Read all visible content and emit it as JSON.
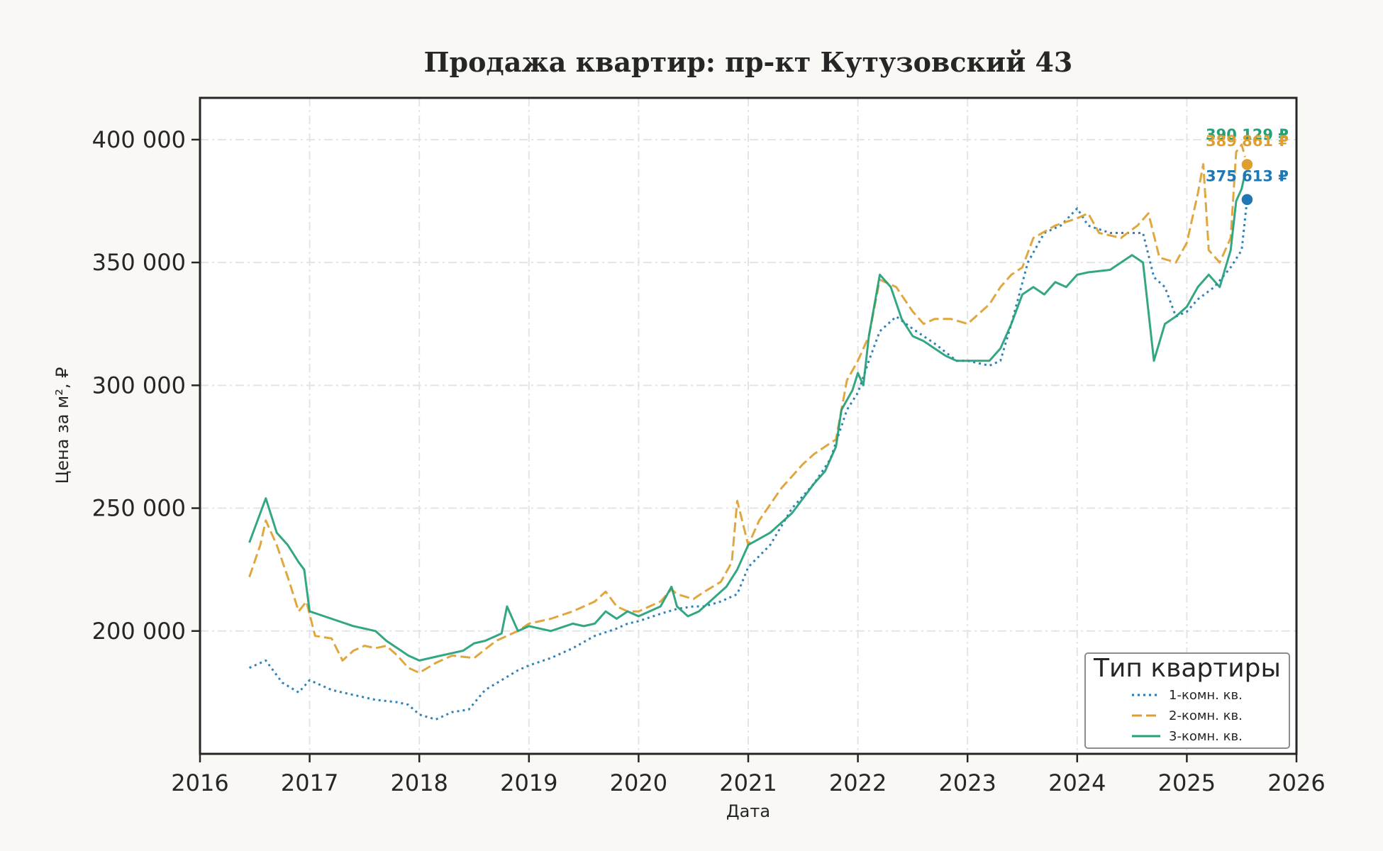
{
  "chart_data": {
    "type": "line",
    "title": "Продажа квартир: пр-кт Кутузовский 43",
    "xlabel": "Дата",
    "ylabel": "Цена за м², ₽",
    "xlim": [
      2016,
      2026
    ],
    "ylim": [
      150000,
      417000
    ],
    "xticks": [
      "2016",
      "2017",
      "2018",
      "2019",
      "2020",
      "2021",
      "2022",
      "2023",
      "2024",
      "2025",
      "2026"
    ],
    "yticks": [
      {
        "value": 200000,
        "label": "200 000"
      },
      {
        "value": 250000,
        "label": "250 000"
      },
      {
        "value": 300000,
        "label": "300 000"
      },
      {
        "value": 350000,
        "label": "350 000"
      },
      {
        "value": 400000,
        "label": "400 000"
      }
    ],
    "grid": true,
    "legend": {
      "title": "Тип квартиры",
      "placement": "lower-right"
    },
    "series": [
      {
        "name": "1-комн. кв.",
        "color": "#1f77b4",
        "style": "dotted",
        "x": [
          2016.45,
          2016.6,
          2016.75,
          2016.9,
          2017.0,
          2017.2,
          2017.4,
          2017.6,
          2017.8,
          2017.9,
          2018.0,
          2018.15,
          2018.3,
          2018.45,
          2018.6,
          2018.75,
          2018.9,
          2019.0,
          2019.2,
          2019.4,
          2019.6,
          2019.8,
          2019.9,
          2020.0,
          2020.2,
          2020.35,
          2020.5,
          2020.6,
          2020.75,
          2020.9,
          2021.0,
          2021.2,
          2021.4,
          2021.6,
          2021.75,
          2021.9,
          2022.0,
          2022.1,
          2022.2,
          2022.35,
          2022.5,
          2022.7,
          2022.9,
          2023.0,
          2023.2,
          2023.3,
          2023.4,
          2023.55,
          2023.7,
          2023.85,
          2024.0,
          2024.1,
          2024.3,
          2024.5,
          2024.6,
          2024.7,
          2024.8,
          2024.9,
          2025.0,
          2025.1,
          2025.25,
          2025.4,
          2025.5,
          2025.55
        ],
        "values": [
          185000,
          188000,
          179000,
          175000,
          180000,
          176000,
          174000,
          172000,
          171000,
          170000,
          166000,
          164000,
          167000,
          168000,
          176000,
          180000,
          184000,
          186000,
          189000,
          193000,
          198000,
          201000,
          203000,
          204000,
          207000,
          209000,
          210000,
          210000,
          212000,
          215000,
          226000,
          235000,
          250000,
          260000,
          270000,
          290000,
          297000,
          310000,
          322000,
          328000,
          323000,
          317000,
          310000,
          310000,
          308000,
          310000,
          325000,
          350000,
          362000,
          365000,
          372000,
          365000,
          362000,
          362000,
          362000,
          344000,
          340000,
          328000,
          330000,
          335000,
          340000,
          348000,
          355000,
          375613
        ]
      },
      {
        "name": "2-комн. кв.",
        "color": "#de9f2f",
        "style": "dashed",
        "x": [
          2016.45,
          2016.55,
          2016.6,
          2016.7,
          2016.8,
          2016.9,
          2016.97,
          2017.05,
          2017.2,
          2017.3,
          2017.4,
          2017.5,
          2017.6,
          2017.7,
          2017.8,
          2017.9,
          2018.0,
          2018.15,
          2018.3,
          2018.5,
          2018.7,
          2018.9,
          2019.0,
          2019.2,
          2019.4,
          2019.6,
          2019.7,
          2019.8,
          2019.9,
          2020.0,
          2020.2,
          2020.3,
          2020.35,
          2020.5,
          2020.6,
          2020.75,
          2020.85,
          2020.9,
          2021.0,
          2021.1,
          2021.3,
          2021.5,
          2021.6,
          2021.7,
          2021.8,
          2021.85,
          2021.9,
          2022.0,
          2022.1,
          2022.2,
          2022.35,
          2022.5,
          2022.6,
          2022.7,
          2022.85,
          2023.0,
          2023.2,
          2023.3,
          2023.4,
          2023.5,
          2023.6,
          2023.8,
          2024.0,
          2024.1,
          2024.2,
          2024.4,
          2024.55,
          2024.65,
          2024.75,
          2024.9,
          2025.0,
          2025.1,
          2025.15,
          2025.2,
          2025.3,
          2025.4,
          2025.45,
          2025.5,
          2025.55
        ],
        "values": [
          222000,
          235000,
          245000,
          235000,
          222000,
          208000,
          212000,
          198000,
          197000,
          188000,
          192000,
          194000,
          193000,
          194000,
          190000,
          185000,
          183000,
          187000,
          190000,
          189000,
          196000,
          200000,
          203000,
          205000,
          208000,
          212000,
          216000,
          210000,
          208000,
          208000,
          212000,
          217000,
          215000,
          213000,
          216000,
          220000,
          228000,
          253000,
          235000,
          245000,
          258000,
          268000,
          272000,
          275000,
          278000,
          290000,
          302000,
          310000,
          320000,
          343000,
          340000,
          330000,
          325000,
          327000,
          327000,
          325000,
          333000,
          340000,
          345000,
          348000,
          360000,
          365000,
          368000,
          370000,
          362000,
          360000,
          365000,
          370000,
          352000,
          350000,
          358000,
          378000,
          390000,
          355000,
          350000,
          360000,
          395000,
          398000,
          389861
        ]
      },
      {
        "name": "3-комн. кв.",
        "color": "#22a07a",
        "style": "solid",
        "x": [
          2016.45,
          2016.55,
          2016.6,
          2016.7,
          2016.8,
          2016.9,
          2016.95,
          2017.0,
          2017.2,
          2017.4,
          2017.6,
          2017.7,
          2017.8,
          2017.9,
          2018.0,
          2018.2,
          2018.4,
          2018.5,
          2018.6,
          2018.75,
          2018.8,
          2018.9,
          2019.0,
          2019.2,
          2019.4,
          2019.5,
          2019.6,
          2019.7,
          2019.8,
          2019.9,
          2020.0,
          2020.2,
          2020.3,
          2020.35,
          2020.45,
          2020.55,
          2020.65,
          2020.8,
          2020.9,
          2021.0,
          2021.2,
          2021.4,
          2021.6,
          2021.7,
          2021.8,
          2021.85,
          2021.95,
          2022.0,
          2022.05,
          2022.1,
          2022.2,
          2022.3,
          2022.4,
          2022.5,
          2022.6,
          2022.7,
          2022.8,
          2022.9,
          2023.0,
          2023.2,
          2023.3,
          2023.4,
          2023.5,
          2023.6,
          2023.7,
          2023.8,
          2023.9,
          2024.0,
          2024.1,
          2024.3,
          2024.5,
          2024.6,
          2024.65,
          2024.7,
          2024.8,
          2024.9,
          2025.0,
          2025.1,
          2025.2,
          2025.3,
          2025.4,
          2025.45,
          2025.5,
          2025.55
        ],
        "values": [
          236000,
          248000,
          254000,
          240000,
          235000,
          228000,
          225000,
          208000,
          205000,
          202000,
          200000,
          196000,
          193000,
          190000,
          188000,
          190000,
          192000,
          195000,
          196000,
          199000,
          210000,
          200000,
          202000,
          200000,
          203000,
          202000,
          203000,
          208000,
          205000,
          208000,
          206000,
          210000,
          218000,
          210000,
          206000,
          208000,
          212000,
          218000,
          225000,
          235000,
          240000,
          248000,
          260000,
          265000,
          275000,
          290000,
          298000,
          305000,
          300000,
          320000,
          345000,
          340000,
          327000,
          320000,
          318000,
          315000,
          312000,
          310000,
          310000,
          310000,
          315000,
          325000,
          337000,
          340000,
          337000,
          342000,
          340000,
          345000,
          346000,
          347000,
          353000,
          350000,
          330000,
          310000,
          325000,
          328000,
          332000,
          340000,
          345000,
          340000,
          355000,
          375000,
          380000,
          390129
        ]
      }
    ],
    "end_labels": [
      {
        "series": "3-комн. кв.",
        "text": "390 129 ₽",
        "x": 2025.55,
        "value": 390129,
        "color": "#22a07a"
      },
      {
        "series": "2-комн. кв.",
        "text": "389 861 ₽",
        "x": 2025.55,
        "value": 389861,
        "color": "#de9f2f"
      },
      {
        "series": "1-комн. кв.",
        "text": "375 613 ₽",
        "x": 2025.55,
        "value": 375613,
        "color": "#1f77b4"
      }
    ]
  }
}
